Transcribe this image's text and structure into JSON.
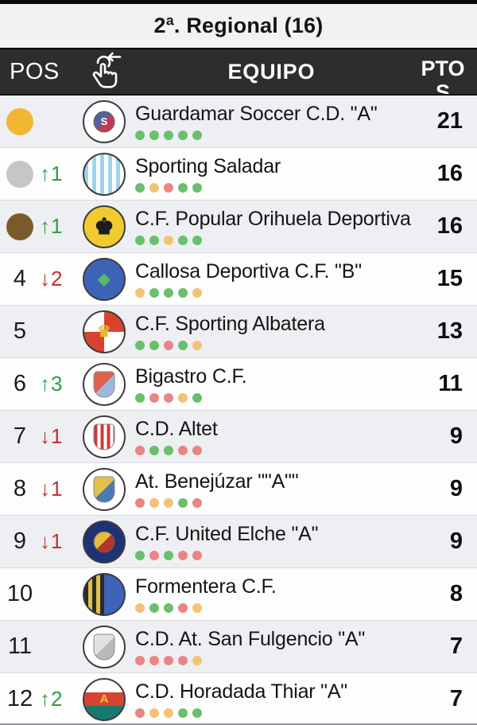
{
  "title": "2ª. Regional (16)",
  "header": {
    "pos": "POS",
    "equipo": "EQUIPO",
    "ptos": "PTOS",
    "swipe_icon": "hand-swipe-left-icon"
  },
  "colors": {
    "up": "#2f9e44",
    "down": "#c23131",
    "dots": {
      "g": "#68c06c",
      "o": "#f2c375",
      "r": "#e98585"
    },
    "medals": {
      "gold": "#f2b632",
      "silver": "#c6c6c6",
      "bronze": "#7a5a2a"
    },
    "header_bg": "#2d2d2d",
    "row_odd": "#edeff2",
    "row_even": "#fdfdfe"
  },
  "rows": [
    {
      "pos": "",
      "medal": "gold",
      "move": null,
      "team": "Guardamar Soccer C.D. \"A\"",
      "pts": "21",
      "form": [
        "g",
        "g",
        "g",
        "g",
        "g"
      ],
      "crest": {
        "pattern": "badge",
        "colors": [
          "#ffffff",
          "#55619e",
          "#bf3a55"
        ],
        "glyph": "S",
        "glyph_color": "#ffffff",
        "glyph_size": 13
      }
    },
    {
      "pos": "",
      "medal": "silver",
      "move": {
        "dir": "up",
        "n": "1"
      },
      "team": "Sporting Saladar",
      "pts": "16",
      "form": [
        "g",
        "o",
        "r",
        "g",
        "g"
      ],
      "crest": {
        "pattern": "stripes",
        "colors": [
          "#9fd4e8",
          "#ffffff"
        ],
        "glyph": "",
        "glyph_color": "",
        "glyph_size": 0
      }
    },
    {
      "pos": "",
      "medal": "bronze",
      "move": {
        "dir": "up",
        "n": "1"
      },
      "team": "C.F. Popular Orihuela Deportiva",
      "pts": "16",
      "form": [
        "g",
        "g",
        "o",
        "g",
        "g"
      ],
      "crest": {
        "pattern": "plain",
        "colors": [
          "#f1ca2e"
        ],
        "glyph": "♚",
        "glyph_color": "#1c1c1c",
        "glyph_size": 28
      }
    },
    {
      "pos": "4",
      "medal": null,
      "move": {
        "dir": "down",
        "n": "2"
      },
      "team": "Callosa Deportiva C.F. \"B\"",
      "pts": "15",
      "form": [
        "o",
        "g",
        "g",
        "g",
        "o"
      ],
      "crest": {
        "pattern": "plain",
        "colors": [
          "#3d63b8"
        ],
        "glyph": "◆",
        "glyph_color": "#58bd62",
        "glyph_size": 20
      }
    },
    {
      "pos": "5",
      "medal": null,
      "move": null,
      "team": "C.F. Sporting Albatera",
      "pts": "13",
      "form": [
        "g",
        "g",
        "r",
        "g",
        "o"
      ],
      "crest": {
        "pattern": "quarters",
        "colors": [
          "#d8432f",
          "#ffffff"
        ],
        "glyph": "♛",
        "glyph_color": "#e8b93a",
        "glyph_size": 20
      }
    },
    {
      "pos": "6",
      "medal": null,
      "move": {
        "dir": "up",
        "n": "3"
      },
      "team": "Bigastro C.F.",
      "pts": "11",
      "form": [
        "g",
        "r",
        "r",
        "o",
        "g"
      ],
      "crest": {
        "pattern": "badge-split",
        "colors": [
          "#ffffff",
          "#e0614f",
          "#9db8dc"
        ],
        "glyph": "",
        "glyph_color": "",
        "glyph_size": 0
      }
    },
    {
      "pos": "7",
      "medal": null,
      "move": {
        "dir": "down",
        "n": "1"
      },
      "team": "C.D. Altet",
      "pts": "9",
      "form": [
        "r",
        "g",
        "g",
        "r",
        "r"
      ],
      "crest": {
        "pattern": "badge-stripes",
        "colors": [
          "#ffffff",
          "#cf3b3b",
          "#ffffff"
        ],
        "glyph": "",
        "glyph_color": "",
        "glyph_size": 0
      }
    },
    {
      "pos": "8",
      "medal": null,
      "move": {
        "dir": "down",
        "n": "1"
      },
      "team": "At. Benejúzar \"\"A\"\"",
      "pts": "9",
      "form": [
        "r",
        "o",
        "o",
        "g",
        "r"
      ],
      "crest": {
        "pattern": "badge-split",
        "colors": [
          "#ffffff",
          "#e3bf4b",
          "#4a7ab5"
        ],
        "glyph": "",
        "glyph_color": "",
        "glyph_size": 0
      }
    },
    {
      "pos": "9",
      "medal": null,
      "move": {
        "dir": "down",
        "n": "1"
      },
      "team": "C.F. United Elche \"A\"",
      "pts": "9",
      "form": [
        "g",
        "r",
        "g",
        "r",
        "r"
      ],
      "crest": {
        "pattern": "badge",
        "colors": [
          "#203276",
          "#e8b93a",
          "#b5342e"
        ],
        "glyph": "",
        "glyph_color": "",
        "glyph_size": 0
      }
    },
    {
      "pos": "10",
      "medal": null,
      "move": null,
      "team": "Formentera C.F.",
      "pts": "8",
      "form": [
        "o",
        "g",
        "g",
        "r",
        "o"
      ],
      "crest": {
        "pattern": "half-stripes",
        "colors": [
          "#2b2b2b",
          "#e3bf4b",
          "#3d63b8"
        ],
        "glyph": "",
        "glyph_color": "",
        "glyph_size": 0
      }
    },
    {
      "pos": "11",
      "medal": null,
      "move": null,
      "team": "C.D. At. San Fulgencio \"A\"",
      "pts": "7",
      "form": [
        "r",
        "r",
        "r",
        "r",
        "o"
      ],
      "crest": {
        "pattern": "badge-split",
        "colors": [
          "#ffffff",
          "#e2e2e2",
          "#b9b9b9"
        ],
        "glyph": "",
        "glyph_color": "",
        "glyph_size": 0
      }
    },
    {
      "pos": "12",
      "medal": null,
      "move": {
        "dir": "up",
        "n": "2"
      },
      "team": "C.D. Horadada Thiar \"A\"",
      "pts": "7",
      "form": [
        "r",
        "o",
        "o",
        "g",
        "g"
      ],
      "crest": {
        "pattern": "bands",
        "colors": [
          "#ffffff",
          "#d8432f",
          "#177a6e"
        ],
        "glyph": "A",
        "glyph_color": "#e8c23a",
        "glyph_size": 15
      }
    }
  ]
}
